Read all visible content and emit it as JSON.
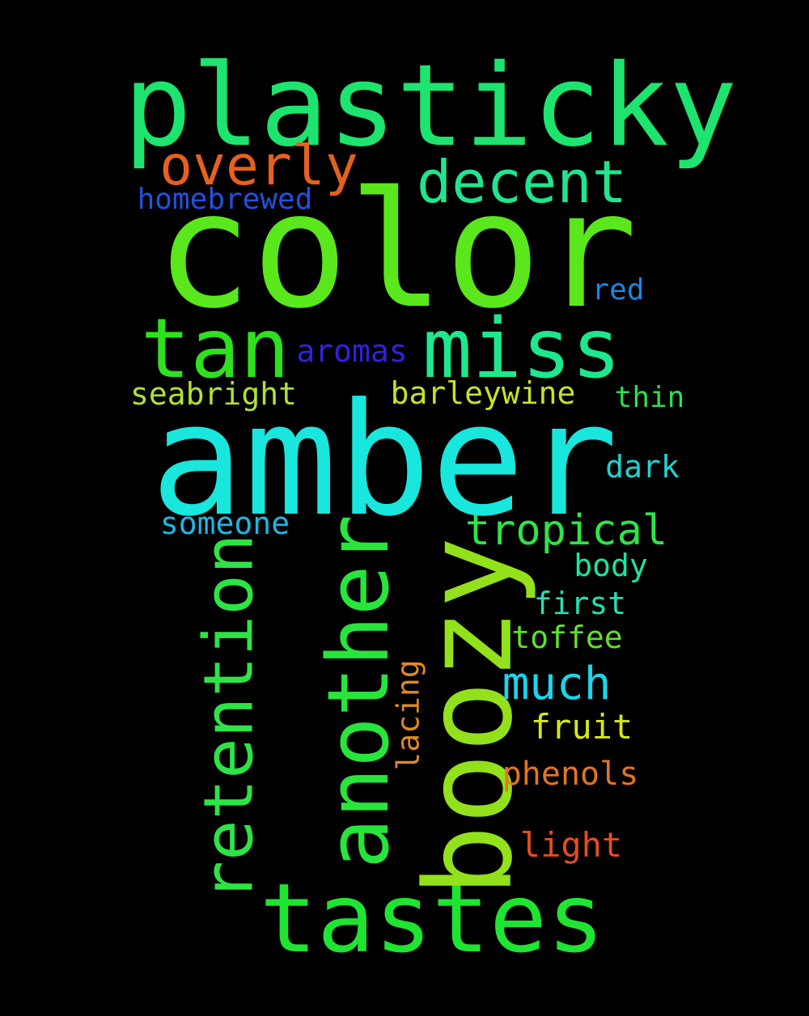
{
  "words": [
    {
      "text": "plasticky",
      "color": "#1de46e",
      "vertical": false
    },
    {
      "text": "color",
      "color": "#5ae71b",
      "vertical": false
    },
    {
      "text": "amber",
      "color": "#19e6dd",
      "vertical": false
    },
    {
      "text": "tastes",
      "color": "#1fe432",
      "vertical": false
    },
    {
      "text": "boozy",
      "color": "#92e11a",
      "vertical": true
    },
    {
      "text": "another",
      "color": "#28e53c",
      "vertical": true
    },
    {
      "text": "retention",
      "color": "#2ee345",
      "vertical": true
    },
    {
      "text": "miss",
      "color": "#1de88e",
      "vertical": false
    },
    {
      "text": "tan",
      "color": "#2fe01e",
      "vertical": false
    },
    {
      "text": "overly",
      "color": "#e6611e",
      "vertical": false
    },
    {
      "text": "decent",
      "color": "#21e58e",
      "vertical": false
    },
    {
      "text": "homebrewed",
      "color": "#2151de",
      "vertical": false
    },
    {
      "text": "red",
      "color": "#1c86e3",
      "vertical": false
    },
    {
      "text": "aromas",
      "color": "#3122de",
      "vertical": false
    },
    {
      "text": "seabright",
      "color": "#aee23a",
      "vertical": false
    },
    {
      "text": "barleywine",
      "color": "#c7e229",
      "vertical": false
    },
    {
      "text": "thin",
      "color": "#2ce04f",
      "vertical": false
    },
    {
      "text": "dark",
      "color": "#21d3cf",
      "vertical": false
    },
    {
      "text": "someone",
      "color": "#1fb6e1",
      "vertical": false
    },
    {
      "text": "tropical",
      "color": "#2ee448",
      "vertical": false
    },
    {
      "text": "body",
      "color": "#1de4a0",
      "vertical": false
    },
    {
      "text": "first",
      "color": "#23e0b3",
      "vertical": false
    },
    {
      "text": "toffee",
      "color": "#5fe12c",
      "vertical": false
    },
    {
      "text": "much",
      "color": "#1ad6ea",
      "vertical": false
    },
    {
      "text": "lacing",
      "color": "#de8a23",
      "vertical": true
    },
    {
      "text": "fruit",
      "color": "#d6e61c",
      "vertical": false
    },
    {
      "text": "phenols",
      "color": "#e2751f",
      "vertical": false
    },
    {
      "text": "light",
      "color": "#e64c1e",
      "vertical": false
    }
  ]
}
